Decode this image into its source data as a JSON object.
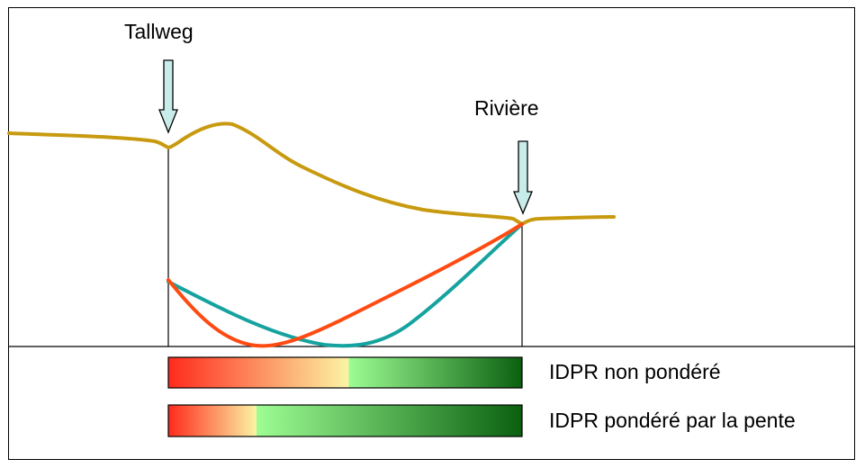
{
  "labels": {
    "thalweg": "Tallweg",
    "riviere": "Rivière",
    "bar1": "IDPR non pondéré",
    "bar2": "IDPR pondéré par la pente"
  },
  "colors": {
    "terrain": "#c89a10",
    "unweighted_curve": "#16a39f",
    "weighted_curve": "#ff4a12",
    "arrow_fill": "#c8ecea",
    "red": "#ff2a1c",
    "yellow": "#fbf4a4",
    "light_green": "#9dfd93",
    "dark_green": "#0b6010"
  },
  "bars": {
    "unweighted_split_fraction": 0.51,
    "weighted_split_fraction": 0.25
  }
}
